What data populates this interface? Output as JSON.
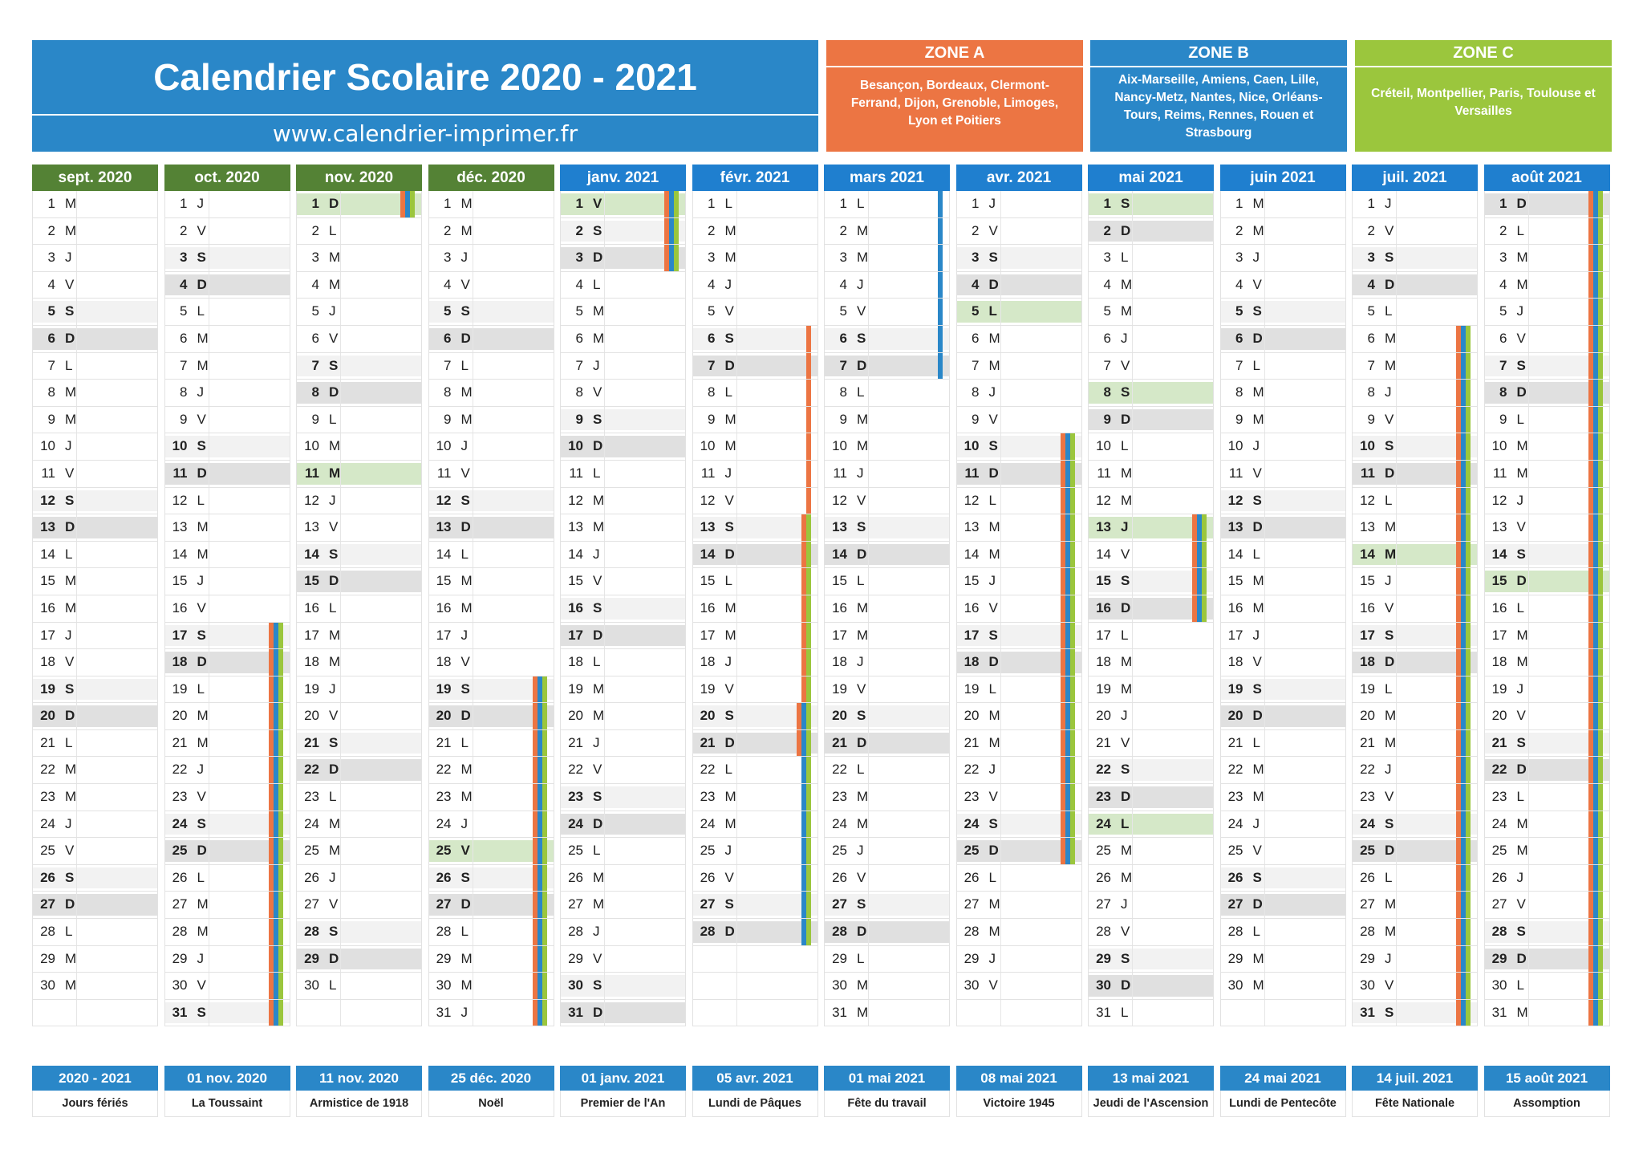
{
  "header": {
    "title": "Calendrier Scolaire 2020 - 2021",
    "url": "www.calendrier-imprimer.fr"
  },
  "zones": [
    {
      "label": "ZONE A",
      "cities": "Besançon, Bordeaux, Clermont-Ferrand, Dijon, Grenoble, Limoges, Lyon et Poitiers",
      "color": "#ec7543"
    },
    {
      "label": "ZONE B",
      "cities": "Aix-Marseille, Amiens, Caen, Lille, Nancy-Metz, Nantes, Nice, Orléans-Tours, Reims, Rennes, Rouen et Strasbourg",
      "color": "#2a87c8"
    },
    {
      "label": "ZONE C",
      "cities": "Créteil, Montpellier, Paris, Toulouse et Versailles",
      "color": "#9bc63d"
    }
  ],
  "colors": {
    "zone_a": "#ec7543",
    "zone_b": "#2a87c8",
    "zone_c": "#9bc63d",
    "month_2020": "#548235",
    "month_2021": "#1f7fcf",
    "holiday_fill": "#d5e8c8"
  },
  "months": [
    {
      "label": "sept. 2020",
      "year": 2020,
      "index": 8
    },
    {
      "label": "oct. 2020",
      "year": 2020,
      "index": 9
    },
    {
      "label": "nov. 2020",
      "year": 2020,
      "index": 10
    },
    {
      "label": "déc. 2020",
      "year": 2020,
      "index": 11
    },
    {
      "label": "janv. 2021",
      "year": 2021,
      "index": 0
    },
    {
      "label": "févr. 2021",
      "year": 2021,
      "index": 1
    },
    {
      "label": "mars 2021",
      "year": 2021,
      "index": 2
    },
    {
      "label": "avr. 2021",
      "year": 2021,
      "index": 3
    },
    {
      "label": "mai 2021",
      "year": 2021,
      "index": 4
    },
    {
      "label": "juin 2021",
      "year": 2021,
      "index": 5
    },
    {
      "label": "juil. 2021",
      "year": 2021,
      "index": 6
    },
    {
      "label": "août 2021",
      "year": 2021,
      "index": 7
    }
  ],
  "day_letters": [
    "D",
    "L",
    "M",
    "M",
    "J",
    "V",
    "S"
  ],
  "public_holidays": [
    "2020-11-01",
    "2020-11-11",
    "2020-12-25",
    "2021-01-01",
    "2021-04-05",
    "2021-05-01",
    "2021-05-08",
    "2021-05-13",
    "2021-05-24",
    "2021-07-14",
    "2021-08-15"
  ],
  "school_vacations": {
    "A": [
      [
        "2020-10-17",
        "2020-11-01"
      ],
      [
        "2020-12-19",
        "2021-01-03"
      ],
      [
        "2021-02-06",
        "2021-02-21"
      ],
      [
        "2021-04-10",
        "2021-04-25"
      ],
      [
        "2021-05-13",
        "2021-05-16"
      ],
      [
        "2021-07-06",
        "2021-08-31"
      ]
    ],
    "B": [
      [
        "2020-10-17",
        "2020-11-01"
      ],
      [
        "2020-12-19",
        "2021-01-03"
      ],
      [
        "2021-02-20",
        "2021-02-28"
      ],
      [
        "2021-03-01",
        "2021-03-07"
      ],
      [
        "2021-04-10",
        "2021-04-25"
      ],
      [
        "2021-05-13",
        "2021-05-16"
      ],
      [
        "2021-07-06",
        "2021-08-31"
      ]
    ],
    "C": [
      [
        "2020-10-17",
        "2020-11-01"
      ],
      [
        "2020-12-19",
        "2021-01-03"
      ],
      [
        "2021-02-13",
        "2021-02-28"
      ],
      [
        "2021-04-10",
        "2021-04-25"
      ],
      [
        "2021-05-13",
        "2021-05-16"
      ],
      [
        "2021-07-06",
        "2021-08-31"
      ]
    ]
  },
  "holidays_footer": [
    {
      "date": "2020 - 2021",
      "name": "Jours fériés"
    },
    {
      "date": "01 nov. 2020",
      "name": "La Toussaint"
    },
    {
      "date": "11 nov. 2020",
      "name": "Armistice de 1918"
    },
    {
      "date": "25 déc. 2020",
      "name": "Noël"
    },
    {
      "date": "01 janv. 2021",
      "name": "Premier de l'An"
    },
    {
      "date": "05 avr. 2021",
      "name": "Lundi de Pâques"
    },
    {
      "date": "01 mai 2021",
      "name": "Fête du travail"
    },
    {
      "date": "08 mai 2021",
      "name": "Victoire 1945"
    },
    {
      "date": "13 mai 2021",
      "name": "Jeudi de l'Ascension"
    },
    {
      "date": "24 mai 2021",
      "name": "Lundi de Pentecôte"
    },
    {
      "date": "14 juil. 2021",
      "name": "Fête Nationale"
    },
    {
      "date": "15 août 2021",
      "name": "Assomption"
    }
  ]
}
